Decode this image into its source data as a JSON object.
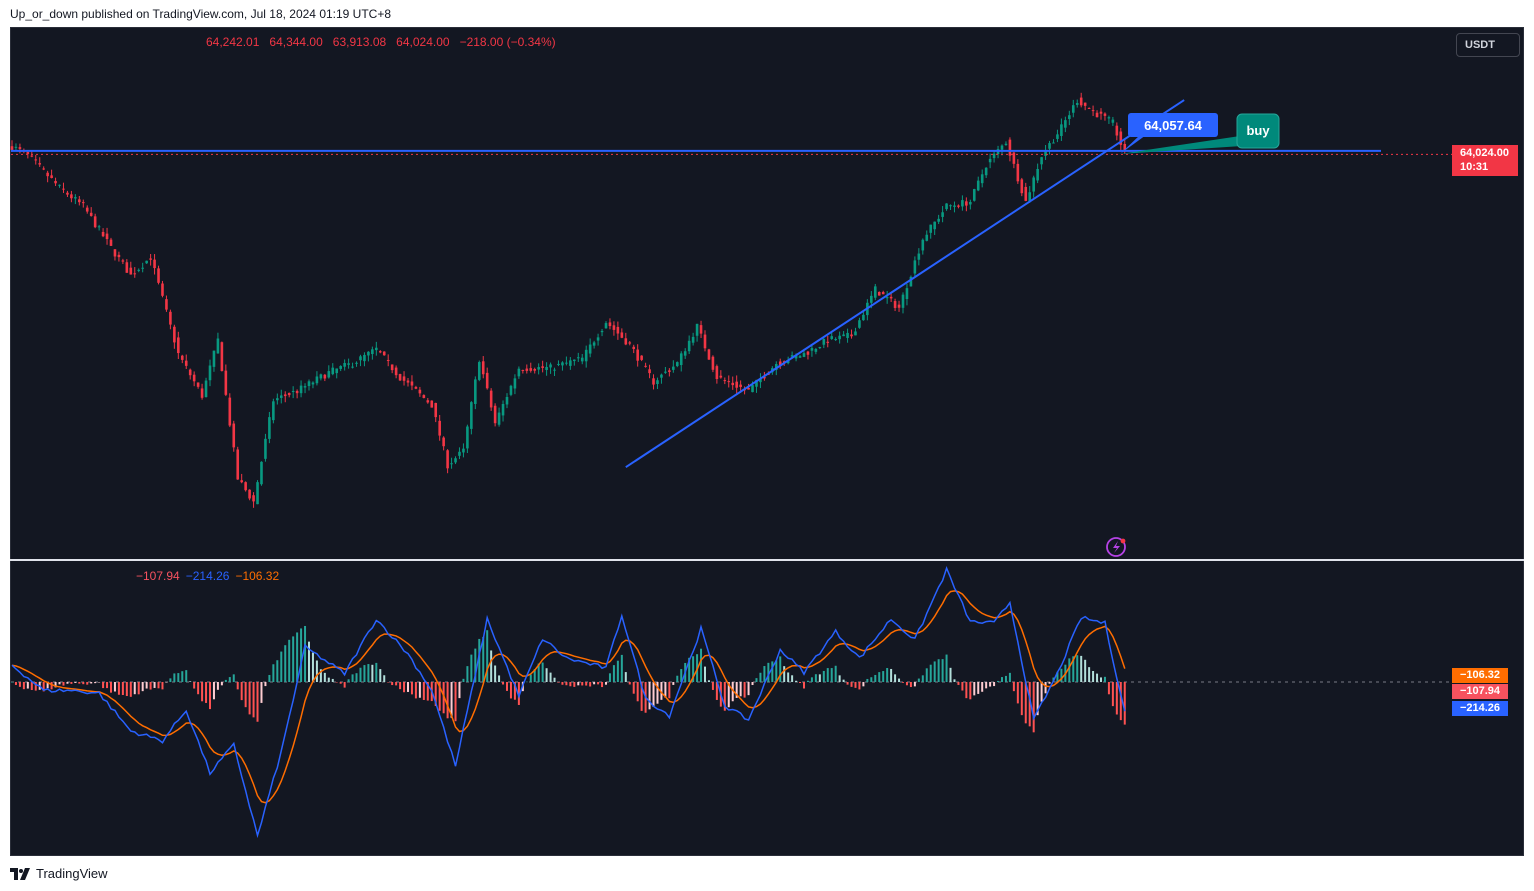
{
  "header": {
    "published_text": "Up_or_down published on TradingView.com, Jul 18, 2024 01:19 UTC+8"
  },
  "toolbar": {
    "currency_label": "USDT"
  },
  "ohlc_legend": {
    "open": "64,242.01",
    "high": "64,344.00",
    "low": "63,913.08",
    "close": "64,024.00",
    "change": "−218.00 (−0.34%)"
  },
  "price_axis": {
    "last_price": "64,024.00",
    "countdown": "10:31"
  },
  "annotations": {
    "price_label": "64,057.64",
    "callout_text": "buy"
  },
  "macd_legend": {
    "histogram": "−107.94",
    "macd": "−214.26",
    "signal": "−106.32"
  },
  "macd_axis": {
    "signal_tag": "−106.32",
    "histogram_tag": "−107.94",
    "macd_tag": "−214.26"
  },
  "footer": {
    "brand": "TradingView"
  },
  "colors": {
    "background": "#131722",
    "up": "#089981",
    "down": "#f23645",
    "trendline": "#2962ff",
    "macd_line": "#2962ff",
    "signal_line": "#ff6d00",
    "hist_up": "#b2dfdb",
    "hist_down": "#ffcdd2",
    "callout": "#00897b"
  },
  "icons": {
    "alert": "lightning-icon",
    "brand": "tradingview-logo-icon"
  },
  "chart_data": [
    {
      "type": "candlestick",
      "title": "",
      "y_range": [
        55500,
        66500
      ],
      "ylim_label": "USDT",
      "key_points": [
        {
          "bar": 0,
          "price": 64200
        },
        {
          "bar": 4,
          "price": 64000
        },
        {
          "bar": 12,
          "price": 63300
        },
        {
          "bar": 18,
          "price": 62900
        },
        {
          "bar": 25,
          "price": 62000
        },
        {
          "bar": 30,
          "price": 61400
        },
        {
          "bar": 35,
          "price": 61800
        },
        {
          "bar": 42,
          "price": 59700
        },
        {
          "bar": 48,
          "price": 58800
        },
        {
          "bar": 52,
          "price": 60000
        },
        {
          "bar": 57,
          "price": 57000
        },
        {
          "bar": 61,
          "price": 56500
        },
        {
          "bar": 66,
          "price": 58700
        },
        {
          "bar": 72,
          "price": 58900
        },
        {
          "bar": 80,
          "price": 59300
        },
        {
          "bar": 86,
          "price": 59500
        },
        {
          "bar": 92,
          "price": 59800
        },
        {
          "bar": 98,
          "price": 59200
        },
        {
          "bar": 106,
          "price": 58600
        },
        {
          "bar": 110,
          "price": 57300
        },
        {
          "bar": 114,
          "price": 57600
        },
        {
          "bar": 118,
          "price": 59600
        },
        {
          "bar": 122,
          "price": 58200
        },
        {
          "bar": 128,
          "price": 59400
        },
        {
          "bar": 136,
          "price": 59400
        },
        {
          "bar": 144,
          "price": 59600
        },
        {
          "bar": 150,
          "price": 60400
        },
        {
          "bar": 156,
          "price": 59900
        },
        {
          "bar": 162,
          "price": 59100
        },
        {
          "bar": 168,
          "price": 59500
        },
        {
          "bar": 173,
          "price": 60300
        },
        {
          "bar": 178,
          "price": 59200
        },
        {
          "bar": 186,
          "price": 58900
        },
        {
          "bar": 193,
          "price": 59500
        },
        {
          "bar": 200,
          "price": 59700
        },
        {
          "bar": 206,
          "price": 60000
        },
        {
          "bar": 212,
          "price": 60100
        },
        {
          "bar": 218,
          "price": 61100
        },
        {
          "bar": 224,
          "price": 60700
        },
        {
          "bar": 230,
          "price": 62200
        },
        {
          "bar": 236,
          "price": 62900
        },
        {
          "bar": 242,
          "price": 63000
        },
        {
          "bar": 246,
          "price": 63800
        },
        {
          "bar": 251,
          "price": 64300
        },
        {
          "bar": 256,
          "price": 63000
        },
        {
          "bar": 260,
          "price": 64000
        },
        {
          "bar": 265,
          "price": 64600
        },
        {
          "bar": 269,
          "price": 65200
        },
        {
          "bar": 274,
          "price": 64900
        },
        {
          "bar": 278,
          "price": 64700
        },
        {
          "bar": 281,
          "price": 64024
        }
      ],
      "horizontal_line": 64100,
      "trendline": [
        {
          "bar": 155,
          "price": 57250
        },
        {
          "bar": 296,
          "price": 65200
        }
      ]
    },
    {
      "type": "macd",
      "title": "",
      "y_range": [
        -1200,
        800
      ],
      "key_points_macd": [
        {
          "bar": 0,
          "v": 120
        },
        {
          "bar": 8,
          "v": -60
        },
        {
          "bar": 15,
          "v": -60
        },
        {
          "bar": 22,
          "v": -80
        },
        {
          "bar": 30,
          "v": -350
        },
        {
          "bar": 38,
          "v": -420
        },
        {
          "bar": 44,
          "v": -200
        },
        {
          "bar": 50,
          "v": -650
        },
        {
          "bar": 56,
          "v": -450
        },
        {
          "bar": 62,
          "v": -1100
        },
        {
          "bar": 68,
          "v": -500
        },
        {
          "bar": 74,
          "v": 250
        },
        {
          "bar": 84,
          "v": 60
        },
        {
          "bar": 92,
          "v": 450
        },
        {
          "bar": 100,
          "v": 200
        },
        {
          "bar": 106,
          "v": -60
        },
        {
          "bar": 112,
          "v": -600
        },
        {
          "bar": 120,
          "v": 450
        },
        {
          "bar": 128,
          "v": -100
        },
        {
          "bar": 134,
          "v": 310
        },
        {
          "bar": 140,
          "v": 170
        },
        {
          "bar": 150,
          "v": 100
        },
        {
          "bar": 154,
          "v": 480
        },
        {
          "bar": 160,
          "v": -120
        },
        {
          "bar": 166,
          "v": -240
        },
        {
          "bar": 174,
          "v": 380
        },
        {
          "bar": 180,
          "v": -170
        },
        {
          "bar": 186,
          "v": -270
        },
        {
          "bar": 194,
          "v": 230
        },
        {
          "bar": 200,
          "v": 70
        },
        {
          "bar": 208,
          "v": 360
        },
        {
          "bar": 214,
          "v": 170
        },
        {
          "bar": 222,
          "v": 450
        },
        {
          "bar": 228,
          "v": 300
        },
        {
          "bar": 236,
          "v": 800
        },
        {
          "bar": 242,
          "v": 430
        },
        {
          "bar": 248,
          "v": 420
        },
        {
          "bar": 252,
          "v": 570
        },
        {
          "bar": 258,
          "v": -270
        },
        {
          "bar": 264,
          "v": 60
        },
        {
          "bar": 270,
          "v": 460
        },
        {
          "bar": 276,
          "v": 420
        },
        {
          "bar": 281,
          "v": -214.26
        }
      ],
      "latest": {
        "histogram": -107.94,
        "macd": -214.26,
        "signal": -106.32
      }
    }
  ]
}
